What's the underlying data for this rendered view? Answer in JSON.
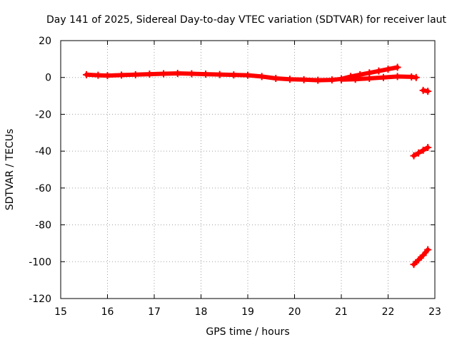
{
  "chart_data": {
    "type": "scatter",
    "title": "Day 141 of 2025, Sidereal Day-to-day VTEC variation (SDTVAR) for receiver laut",
    "xlabel": "GPS time / hours",
    "ylabel": "SDTVAR / TECUs",
    "xlim": [
      15,
      23
    ],
    "ylim": [
      -120,
      20
    ],
    "xticks": [
      15,
      16,
      17,
      18,
      19,
      20,
      21,
      22,
      23
    ],
    "yticks": [
      20,
      0,
      -20,
      -40,
      -60,
      -80,
      -100,
      -120
    ],
    "grid": true,
    "marker": "plus",
    "color": "#ff0000",
    "series": [
      {
        "values": [
          [
            15.55,
            1.5
          ],
          [
            15.8,
            1.2
          ],
          [
            16.0,
            1.0
          ],
          [
            16.3,
            1.3
          ],
          [
            16.6,
            1.5
          ],
          [
            16.9,
            1.8
          ],
          [
            17.2,
            2.0
          ],
          [
            17.5,
            2.2
          ],
          [
            17.8,
            2.0
          ],
          [
            18.1,
            1.8
          ],
          [
            18.4,
            1.6
          ],
          [
            18.7,
            1.4
          ],
          [
            19.0,
            1.2
          ],
          [
            19.3,
            0.5
          ],
          [
            19.6,
            -0.5
          ],
          [
            19.9,
            -1.0
          ],
          [
            20.2,
            -1.2
          ],
          [
            20.5,
            -1.5
          ],
          [
            20.8,
            -1.3
          ],
          [
            21.0,
            -0.8
          ],
          [
            21.2,
            0.5
          ],
          [
            21.4,
            1.5
          ],
          [
            21.6,
            2.5
          ],
          [
            21.8,
            3.5
          ],
          [
            22.0,
            4.5
          ],
          [
            22.2,
            5.5
          ]
        ]
      },
      {
        "values": [
          [
            21.0,
            -1.2
          ],
          [
            21.3,
            -1.0
          ],
          [
            21.6,
            -0.5
          ],
          [
            21.9,
            0.0
          ],
          [
            22.2,
            0.5
          ],
          [
            22.5,
            0.3
          ],
          [
            22.6,
            0.0
          ]
        ]
      },
      {
        "values": [
          [
            22.75,
            -7.0
          ],
          [
            22.85,
            -7.5
          ]
        ]
      },
      {
        "values": [
          [
            22.55,
            -42.5
          ],
          [
            22.65,
            -41.0
          ],
          [
            22.75,
            -39.5
          ],
          [
            22.85,
            -38.0
          ]
        ]
      },
      {
        "values": [
          [
            22.55,
            -101.5
          ],
          [
            22.65,
            -99.0
          ],
          [
            22.75,
            -96.5
          ],
          [
            22.85,
            -93.5
          ]
        ]
      }
    ]
  }
}
